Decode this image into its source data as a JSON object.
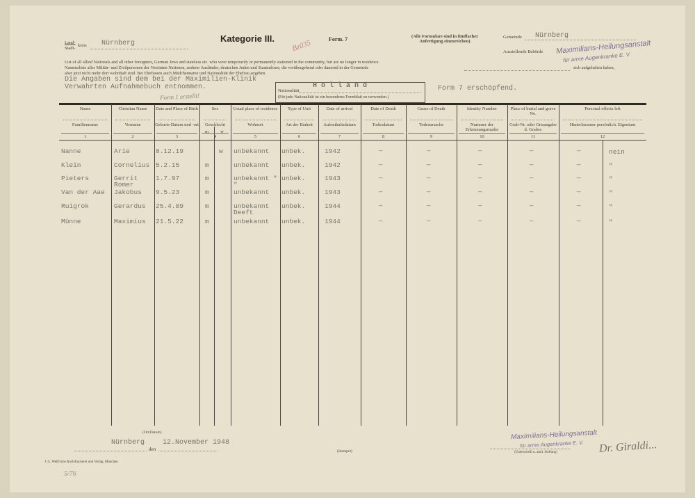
{
  "header": {
    "title": "Kategorie III.",
    "form": "Form. 7",
    "note": "(Alle Formulare sind in fünffacher Anfertigung einzureichen)",
    "land_label": "Land-",
    "stadt_label": "Stadt-",
    "kreis_label": "kreis",
    "kreis_value": "Nürnberg",
    "gemeinde_label": "Gemeinde",
    "gemeinde_value": "Nürnberg",
    "ausstellende_label": "Ausstellende Behörde",
    "stamp_line1": "Maximilians-Heilungsanstalt",
    "stamp_line2": "für arme Augenkranke E. V.",
    "red_mark": "Bz035",
    "intro_en": "List of all allied Nationals and all other foreigners, German Jews and stateless etc. who were temporarily or permanently stationed in the community, but are no longer in residence.",
    "intro_de_1": "Namensliste aller Militär- und Zivilpersonen der Vereinten Nationen, anderer Ausländer, deutschen Juden und Staatenloser, die vorübergehend oder dauernd in der Gemeinde",
    "intro_de_1_end": "sich aufgehalten haben,",
    "intro_de_2": "aber jetzt nicht mehr dort wohnhaft sind. Bei Ehefrauen auch Mädchenname und Nationalität der Ehefrau angeben.",
    "typed_note_1": "Die Angaben sind dem bei der Maximilien-Klinik",
    "typed_note_2": "Verwahrten Aufnahmebuch entnommen.",
    "hand_note": "Form 1 erstellt!",
    "nationality_label": "Nationalität",
    "nationality_value": "H o l l a n d",
    "nationality_note": "(Für jede Nationalität ist ein besonderes Formblatt zu verwenden.)",
    "typed_note_3": "Form 7 erschöpfend."
  },
  "table": {
    "columns": [
      {
        "en": "Name",
        "de": "Familienname",
        "num": "1"
      },
      {
        "en": "Christian Name",
        "de": "Vorname",
        "num": "2"
      },
      {
        "en": "Date and Place of Birth",
        "de": "Geburts-Datum und -ort",
        "num": "3"
      },
      {
        "en": "Sex",
        "de": "Geschlecht",
        "sub": [
          "m",
          "w"
        ],
        "num": "4"
      },
      {
        "en": "Usual place of residence",
        "de": "Wohnort",
        "num": "5"
      },
      {
        "en": "Type of Unit",
        "de": "Art der Einheit",
        "num": "6"
      },
      {
        "en": "Date of arrival",
        "de": "Aufenthaltsdatum",
        "num": "7"
      },
      {
        "en": "Date of Death",
        "de": "Todesdatum",
        "num": "8"
      },
      {
        "en": "Cause of Death",
        "de": "Todesursache",
        "num": "9"
      },
      {
        "en": "Identity Number",
        "de": "Nummer der Erkennungsmarke",
        "num": "10"
      },
      {
        "en": "Place of burial and grave No.",
        "de": "Grab-Nr. oder Ortsangabe d. Grabes",
        "num": "11"
      },
      {
        "en": "Personal effects left",
        "en_sub": [
          "yes",
          "no"
        ],
        "de": "Hinterlassener persönlich. Eigentum",
        "de_sub": [
          "ja",
          "nein"
        ],
        "num": "12"
      }
    ],
    "rows": [
      {
        "name": "Nanne",
        "first": "Arie",
        "birth": "8.12.19",
        "m": "",
        "w": "w",
        "residence": "unbekannt",
        "unit": "unbek.",
        "arrival": "1942",
        "death": "—",
        "cause": "—",
        "id": "—",
        "burial": "—",
        "eff_yes": "—",
        "eff_no": "nein"
      },
      {
        "name": "Klein",
        "first": "Cornelius",
        "birth": "5.2.15",
        "m": "m",
        "w": "",
        "residence": "unbekannt",
        "unit": "unbek.",
        "arrival": "1942",
        "death": "—",
        "cause": "—",
        "id": "—",
        "burial": "—",
        "eff_yes": "—",
        "eff_no": "\""
      },
      {
        "name": "Pieters",
        "first": "Gerrit Romer",
        "birth": "1.7.97",
        "m": "m",
        "w": "",
        "residence": "unbekannt \"  \"",
        "unit": "unbek.",
        "arrival": "1943",
        "death": "—",
        "cause": "—",
        "id": "—",
        "burial": "—",
        "eff_yes": "—",
        "eff_no": "\""
      },
      {
        "name": "Van der Aae",
        "first": "Jakobus",
        "birth": "9.5.23",
        "m": "m",
        "w": "",
        "residence": "unbekannt",
        "unit": "unbek.",
        "arrival": "1943",
        "death": "—",
        "cause": "—",
        "id": "—",
        "burial": "—",
        "eff_yes": "—",
        "eff_no": "\""
      },
      {
        "name": "Ruigrok",
        "first": "Gerardus",
        "birth": "25.4.09",
        "m": "m",
        "w": "",
        "residence": "unbekannt Deeft",
        "unit": "unbek.",
        "arrival": "1944",
        "death": "—",
        "cause": "—",
        "id": "—",
        "burial": "—",
        "eff_yes": "—",
        "eff_no": "\""
      },
      {
        "name": "Münne",
        "first": "Maximius",
        "birth": "21.5.22",
        "m": "m",
        "w": "",
        "residence": "unbekannt",
        "unit": "unbek.",
        "arrival": "1944",
        "death": "—",
        "cause": "—",
        "id": "—",
        "burial": "—",
        "eff_yes": "—",
        "eff_no": "\""
      }
    ]
  },
  "footer": {
    "place_label": "(Ort/Datum)",
    "place": "Nürnberg",
    "den": "den",
    "date": "12.November 1948",
    "stempel_label": "(Stempel)",
    "sign_label": "(Unterschrift u. amtl. Stellung)",
    "stamp_line1": "Maximilians-Heilungsanstalt",
    "stamp_line2": "für arme Augenkranke E. V.",
    "signature": "Dr. Giraldi...",
    "printer": "J. G. Weiß'sche Buchdruckerei und Verlag, München",
    "hand_number": "5/76"
  }
}
